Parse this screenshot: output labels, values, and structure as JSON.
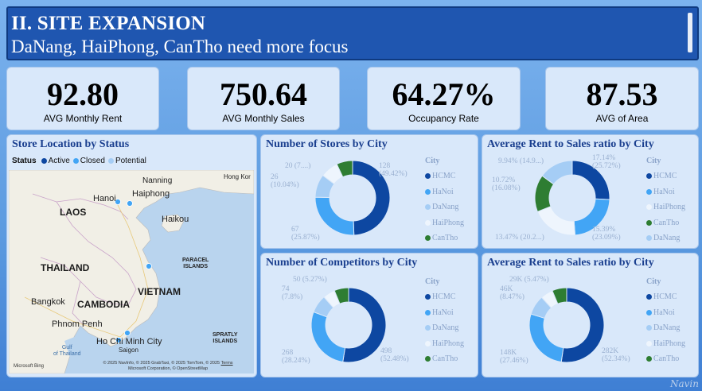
{
  "header": {
    "title": "II. SITE EXPANSION",
    "subtitle": "DaNang, HaiPhong, CanTho need more focus"
  },
  "kpis": [
    {
      "value": "92.80",
      "label": "AVG Monthly Rent"
    },
    {
      "value": "750.64",
      "label": "AVG Monthly Sales"
    },
    {
      "value": "64.27%",
      "label": "Occupancy Rate"
    },
    {
      "value": "87.53",
      "label": "AVG of Area"
    }
  ],
  "map": {
    "title": "Store Location by Status",
    "legend_title": "Status",
    "legend": [
      {
        "label": "Active",
        "color": "#0d47a1"
      },
      {
        "label": "Closed",
        "color": "#42a5f5"
      },
      {
        "label": "Potential",
        "color": "#a5cdf5"
      }
    ],
    "labels": {
      "nanning": "Nanning",
      "hongkong": "Hong Kor",
      "hanoi": "Hanoi",
      "haiphong": "Haiphong",
      "haikou": "Haikou",
      "laos": "LAOS",
      "thailand": "THAILAND",
      "vietnam": "VIETNAM",
      "cambodia": "CAMBODIA",
      "bangkok": "Bangkok",
      "phnompenh": "Phnom Penh",
      "hcmc": "Ho Chi Minh City",
      "saigon": "Saigon",
      "gulf": "Gulf\nof Thailand",
      "paracel": "PARACEL\nISLANDS",
      "spratly": "SPRATLY\nISLANDS",
      "attribution_1": "© 2025 NavInfo, © 2025 GrabTaxi, © 2025 TomTom, © 2025",
      "attribution_terms": "Terms",
      "attribution_2": "Microsoft Corporation, © OpenStreetMap",
      "bing": "Microsoft Bing"
    }
  },
  "legend_title": "City",
  "colors": {
    "HCMC": "#0d47a1",
    "HaNoi": "#42a5f5",
    "DaNang": "#a5cdf5",
    "HaiPhong": "#eef5fd",
    "CanTho": "#2e7d32"
  },
  "charts": {
    "stores": {
      "title": "Number of Stores by City",
      "legend": [
        "HCMC",
        "HaNoi",
        "DaNang",
        "HaiPhong",
        "CanTho"
      ],
      "labels": {
        "hcmc": "128\n(49.42%)",
        "hanoi": "67\n(25.87%)",
        "danang": "26\n(10.04%)",
        "haiphong": "20 (7....)"
      }
    },
    "rent_sales_1": {
      "title": "Average Rent to Sales ratio by City",
      "legend": [
        "HCMC",
        "HaNoi",
        "HaiPhong",
        "CanTho",
        "DaNang"
      ],
      "labels": {
        "hcmc": "17.14%\n(25.72%)",
        "hanoi": "15.39%\n(23.09%)",
        "haiphong": "13.47% (20.2...)",
        "cantho": "10.72%\n(16.08%)",
        "danang": "9.94% (14.9...)"
      }
    },
    "competitors": {
      "title": "Number of Competitors by City",
      "legend": [
        "HCMC",
        "HaNoi",
        "DaNang",
        "HaiPhong",
        "CanTho"
      ],
      "labels": {
        "hcmc": "498\n(52.48%)",
        "hanoi": "268\n(28.24%)",
        "danang": "74\n(7.8%)",
        "haiphong": "50 (5.27%)"
      }
    },
    "rent_sales_2": {
      "title": "Average Rent to Sales ratio by City",
      "legend": [
        "HCMC",
        "HaNoi",
        "DaNang",
        "HaiPhong",
        "CanTho"
      ],
      "labels": {
        "hcmc": "282K\n(52.34%)",
        "hanoi": "148K\n(27.46%)",
        "danang": "46K\n(8.47%)",
        "haiphong": "29K (5.47%)"
      }
    }
  },
  "chart_data": [
    {
      "type": "pie",
      "title": "Number of Stores by City",
      "categories": [
        "HCMC",
        "HaNoi",
        "DaNang",
        "HaiPhong",
        "CanTho"
      ],
      "values": [
        128,
        67,
        26,
        20,
        18
      ],
      "percent": [
        49.42,
        25.87,
        10.04,
        7.72,
        6.95
      ],
      "colors": [
        "#0d47a1",
        "#42a5f5",
        "#a5cdf5",
        "#eef5fd",
        "#2e7d32"
      ]
    },
    {
      "type": "pie",
      "title": "Average Rent to Sales ratio by City",
      "categories": [
        "HCMC",
        "HaNoi",
        "HaiPhong",
        "CanTho",
        "DaNang"
      ],
      "values": [
        17.14,
        15.39,
        13.47,
        10.72,
        9.94
      ],
      "percent": [
        25.72,
        23.09,
        20.2,
        16.08,
        14.9
      ],
      "colors": [
        "#0d47a1",
        "#42a5f5",
        "#eef5fd",
        "#2e7d32",
        "#a5cdf5"
      ]
    },
    {
      "type": "pie",
      "title": "Number of Competitors by City",
      "categories": [
        "HCMC",
        "HaNoi",
        "DaNang",
        "HaiPhong",
        "CanTho"
      ],
      "values": [
        498,
        268,
        74,
        50,
        59
      ],
      "percent": [
        52.48,
        28.24,
        7.8,
        5.27,
        6.21
      ],
      "colors": [
        "#0d47a1",
        "#42a5f5",
        "#a5cdf5",
        "#eef5fd",
        "#2e7d32"
      ]
    },
    {
      "type": "pie",
      "title": "Average Rent to Sales ratio by City",
      "categories": [
        "HCMC",
        "HaNoi",
        "DaNang",
        "HaiPhong",
        "CanTho"
      ],
      "values": [
        282,
        148,
        46,
        29,
        34
      ],
      "percent": [
        52.34,
        27.46,
        8.47,
        5.47,
        6.26
      ],
      "colors": [
        "#0d47a1",
        "#42a5f5",
        "#a5cdf5",
        "#eef5fd",
        "#2e7d32"
      ]
    }
  ],
  "watermark": "Navin"
}
